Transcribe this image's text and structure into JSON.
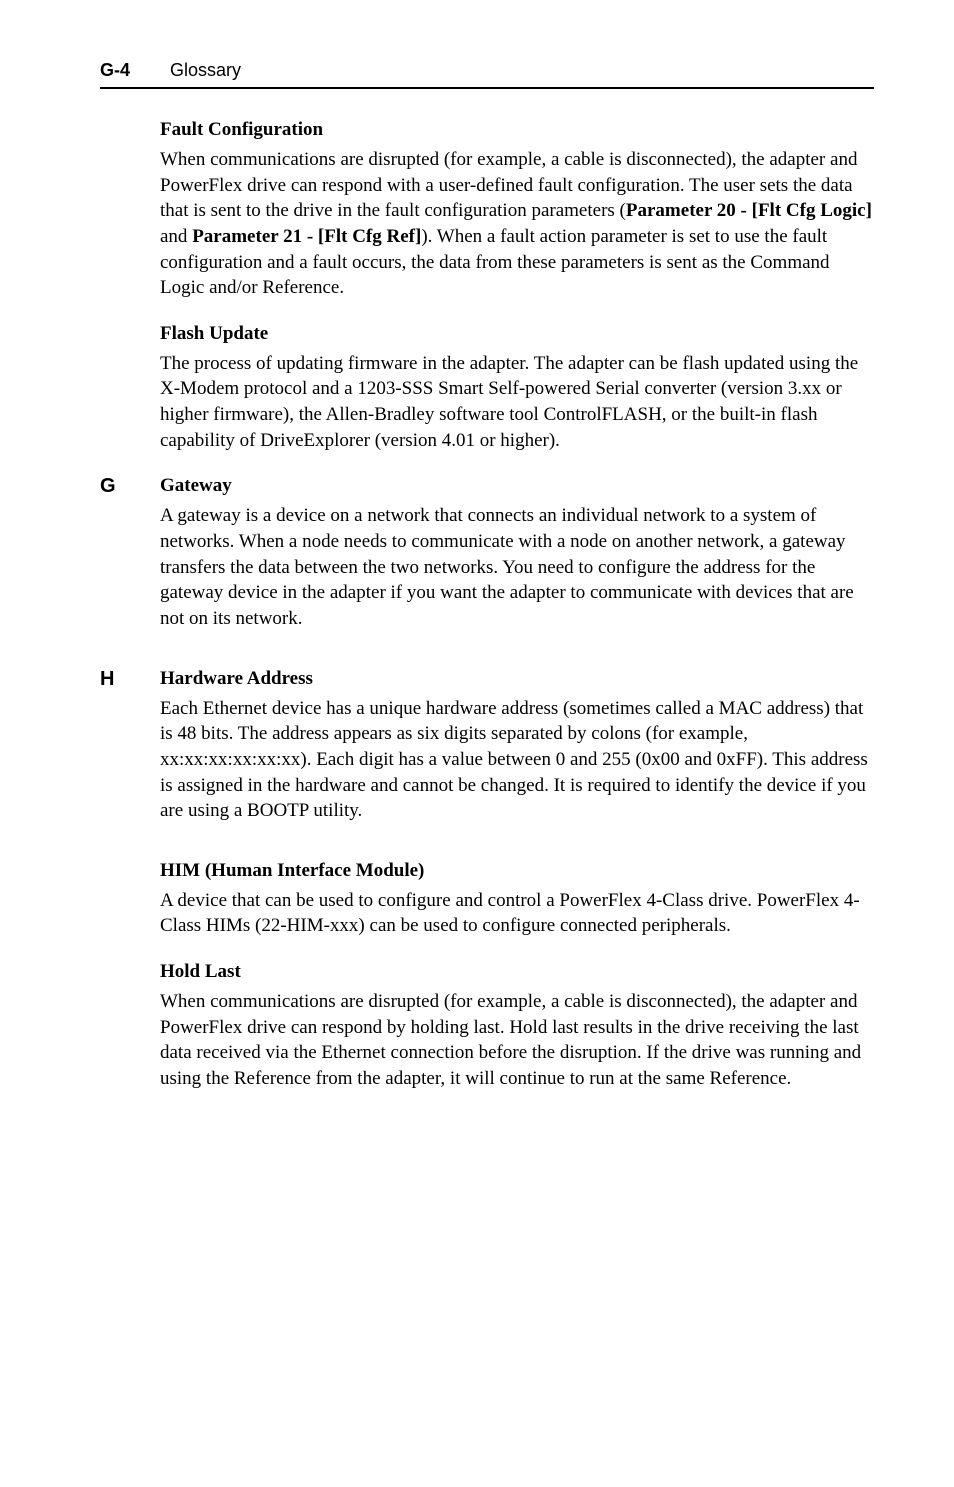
{
  "header": {
    "page_number": "G-4",
    "section_title": "Glossary"
  },
  "entries": [
    {
      "letter": "",
      "term": "Fault Configuration",
      "body_html": "When communications are disrupted (for example, a cable is disconnected), the adapter and PowerFlex drive can respond with a user-defined fault configuration. The user sets the data that is sent to the drive in the fault configuration parameters (<b>Parameter 20 - [Flt Cfg Logic]</b> and <b>Parameter 21 - [Flt Cfg Ref]</b>). When a fault action parameter is set to use the fault configuration and a fault occurs, the data from these parameters is sent as the Command Logic and/or Reference."
    },
    {
      "letter": "",
      "term": "Flash Update",
      "body_html": "The process of updating firmware in the adapter. The adapter can be flash updated using the X-Modem protocol and a 1203-SSS Smart Self-powered Serial converter (version 3.xx or higher firmware), the Allen-Bradley software tool ControlFLASH, or the built-in flash capability of DriveExplorer (version 4.01 or higher)."
    },
    {
      "letter": "G",
      "term": "Gateway",
      "body_html": "A gateway is a device on a network that connects an individual network to a system of networks. When a node needs to communicate with a node on another network, a gateway transfers the data between the two networks. You need to configure the address for the gateway device in the adapter if you want the adapter to communicate with devices that are not on its network."
    },
    {
      "letter": "H",
      "term": "Hardware Address",
      "body_html": "Each Ethernet device has a unique hardware address (sometimes called a MAC address) that is 48 bits. The address appears as six digits separated by colons (for example, xx:xx:xx:xx:xx:xx). Each digit has a value between 0 and 255 (0x00 and 0xFF). This address is assigned in the hardware and cannot be changed. It is required to identify the device if you are using a BOOTP utility."
    },
    {
      "letter": "",
      "term": "HIM (Human Interface Module)",
      "body_html": "A device that can be used to configure and control a PowerFlex 4-Class drive. PowerFlex 4-Class HIMs (22-HIM-xxx) can be used to configure connected peripherals."
    },
    {
      "letter": "",
      "term": "Hold Last",
      "body_html": "When communications are disrupted (for example, a cable is disconnected), the adapter and PowerFlex drive can respond by holding last. Hold last results in the drive receiving the last data received via the Ethernet connection before the disruption. If the drive was running and using the Reference from the adapter, it will continue to run at the same Reference."
    }
  ]
}
